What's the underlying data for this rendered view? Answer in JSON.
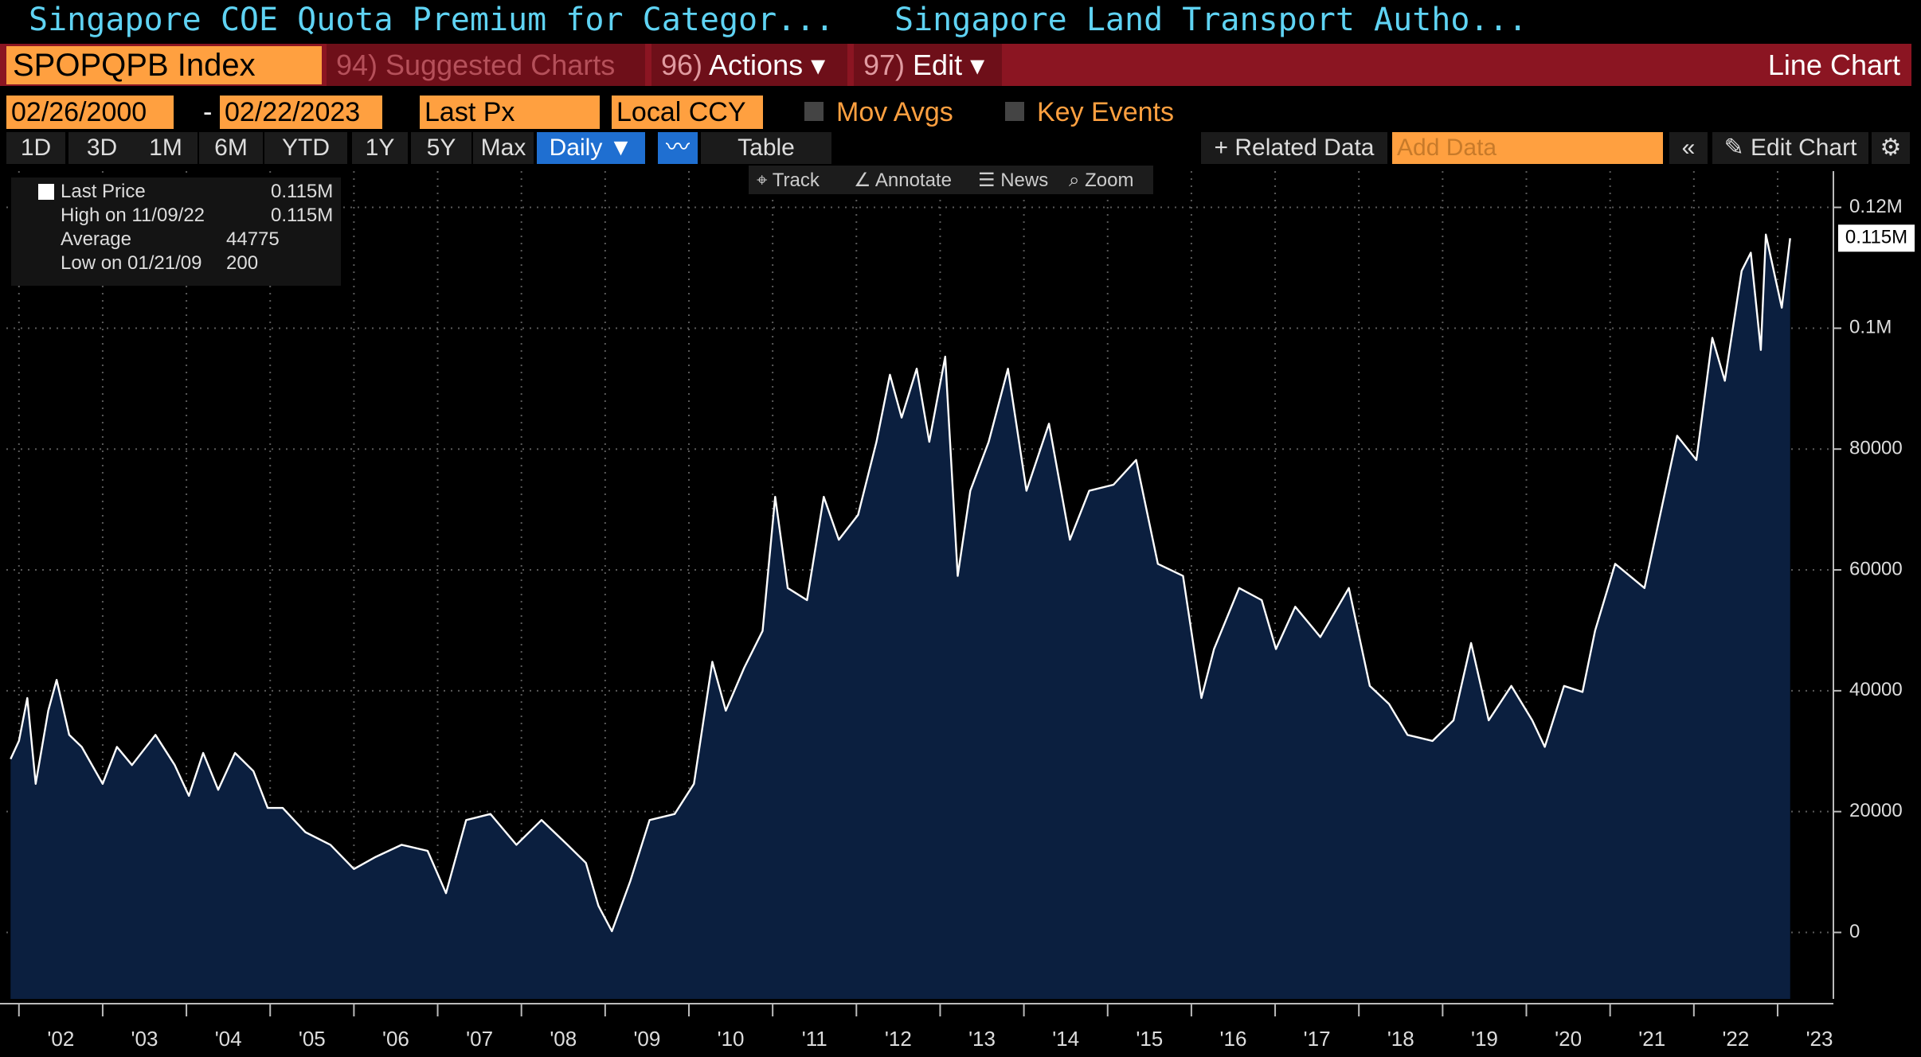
{
  "ui": {
    "title_left": "Singapore COE Quota Premium for Categor...",
    "title_right": "Singapore Land Transport Autho...",
    "ticker": "SPOPQPB Index",
    "menu": [
      {
        "key": "94)",
        "label": "Suggested Charts"
      },
      {
        "key": "96)",
        "label": "Actions ▾"
      },
      {
        "key": "97)",
        "label": "Edit ▾"
      }
    ],
    "chart_kind": "Line Chart",
    "start_date": "02/26/2000",
    "date_sep": "-",
    "end_date": "02/22/2023",
    "field": "Last Px",
    "currency": "Local CCY",
    "mov_avgs": "Mov Avgs",
    "key_events": "Key Events",
    "ranges": [
      "1D",
      "3D",
      "1M",
      "6M",
      "YTD",
      "1Y",
      "5Y",
      "Max"
    ],
    "frequency": "Daily ▼",
    "table": "Table",
    "related": "+ Related Data",
    "add_data": "Add Data",
    "edit_chart": "Edit Chart",
    "tools": [
      "Track",
      "Annotate",
      "News",
      "Zoom"
    ]
  },
  "chart_data": {
    "type": "line",
    "series": [
      {
        "name": "Last Price",
        "color": "#ffffff",
        "fill": "#0b1f3f",
        "values": [
          28700,
          31700,
          38800,
          24600,
          36700,
          41800,
          32700,
          30700,
          24600,
          30700,
          27700,
          32700,
          27700,
          22600,
          29700,
          23600,
          29700,
          26700,
          20600,
          20600,
          16600,
          14500,
          10500,
          12500,
          14500,
          13500,
          6500,
          18600,
          19600,
          14500,
          18600,
          14500,
          11500,
          4400,
          200,
          8500,
          18600,
          19600,
          24600,
          44800,
          36700,
          43800,
          49900,
          72100,
          57000,
          55000,
          72100,
          65000,
          69100,
          81200,
          92300,
          85200,
          93300,
          81200,
          95300,
          59000,
          73100,
          81200,
          93300,
          73100,
          84200,
          65000,
          73100,
          74100,
          78200,
          61000,
          59000,
          38800,
          46900,
          57000,
          55000,
          46900,
          53900,
          48900,
          57000,
          40800,
          37800,
          32700,
          31700,
          35100,
          47900,
          35100,
          40800,
          35100,
          30700,
          40800,
          39800,
          49900,
          61000,
          57000,
          82200,
          78200,
          98400,
          91300,
          109500,
          112500,
          96400,
          115500,
          103400,
          114900
        ]
      }
    ],
    "x": [
      2001.9,
      2002.0,
      2002.1,
      2002.2,
      2002.35,
      2002.45,
      2002.6,
      2002.75,
      2003.0,
      2003.17,
      2003.35,
      2003.63,
      2003.86,
      2004.03,
      2004.2,
      2004.38,
      2004.58,
      2004.8,
      2004.97,
      2005.15,
      2005.42,
      2005.72,
      2006.0,
      2006.26,
      2006.57,
      2006.88,
      2007.1,
      2007.34,
      2007.63,
      2007.94,
      2008.24,
      2008.55,
      2008.77,
      2008.92,
      2009.08,
      2009.3,
      2009.53,
      2009.83,
      2010.06,
      2010.28,
      2010.44,
      2010.66,
      2010.88,
      2011.03,
      2011.18,
      2011.41,
      2011.61,
      2011.79,
      2012.02,
      2012.24,
      2012.4,
      2012.54,
      2012.72,
      2012.87,
      2013.06,
      2013.21,
      2013.36,
      2013.58,
      2013.81,
      2014.03,
      2014.3,
      2014.55,
      2014.78,
      2015.07,
      2015.34,
      2015.6,
      2015.9,
      2016.12,
      2016.27,
      2016.57,
      2016.84,
      2017.01,
      2017.24,
      2017.54,
      2017.88,
      2018.13,
      2018.36,
      2018.58,
      2018.88,
      2019.13,
      2019.34,
      2019.55,
      2019.82,
      2020.07,
      2020.22,
      2020.45,
      2020.67,
      2020.82,
      2021.06,
      2021.41,
      2021.8,
      2022.03,
      2022.22,
      2022.37,
      2022.57,
      2022.68,
      2022.8,
      2022.86,
      2023.05,
      2023.15
    ],
    "xlim": [
      2001.85,
      2023.2
    ],
    "xticks": [
      {
        "value": 2002,
        "label": "'02"
      },
      {
        "value": 2003,
        "label": "'03"
      },
      {
        "value": 2004,
        "label": "'04"
      },
      {
        "value": 2005,
        "label": "'05"
      },
      {
        "value": 2006,
        "label": "'06"
      },
      {
        "value": 2007,
        "label": "'07"
      },
      {
        "value": 2008,
        "label": "'08"
      },
      {
        "value": 2009,
        "label": "'09"
      },
      {
        "value": 2010,
        "label": "'10"
      },
      {
        "value": 2011,
        "label": "'11"
      },
      {
        "value": 2012,
        "label": "'12"
      },
      {
        "value": 2013,
        "label": "'13"
      },
      {
        "value": 2014,
        "label": "'14"
      },
      {
        "value": 2015,
        "label": "'15"
      },
      {
        "value": 2016,
        "label": "'16"
      },
      {
        "value": 2017,
        "label": "'17"
      },
      {
        "value": 2018,
        "label": "'18"
      },
      {
        "value": 2019,
        "label": "'19"
      },
      {
        "value": 2020,
        "label": "'20"
      },
      {
        "value": 2021,
        "label": "'21"
      },
      {
        "value": 2022,
        "label": "'22"
      },
      {
        "value": 2023,
        "label": "'23"
      }
    ],
    "ylim": [
      -11000,
      126000
    ],
    "yticks": [
      0,
      20000,
      40000,
      60000,
      80000,
      {
        "value": 100000,
        "label": "0.1M"
      },
      {
        "value": 120000,
        "label": "0.12M"
      }
    ],
    "grid": true,
    "last_price_label": "0.115M",
    "stats": [
      {
        "label": "High on 11/09/22",
        "value": "0.115M"
      },
      {
        "label": "Average",
        "value": 44775
      },
      {
        "label": "Low on 01/21/09",
        "value": 200
      }
    ]
  }
}
